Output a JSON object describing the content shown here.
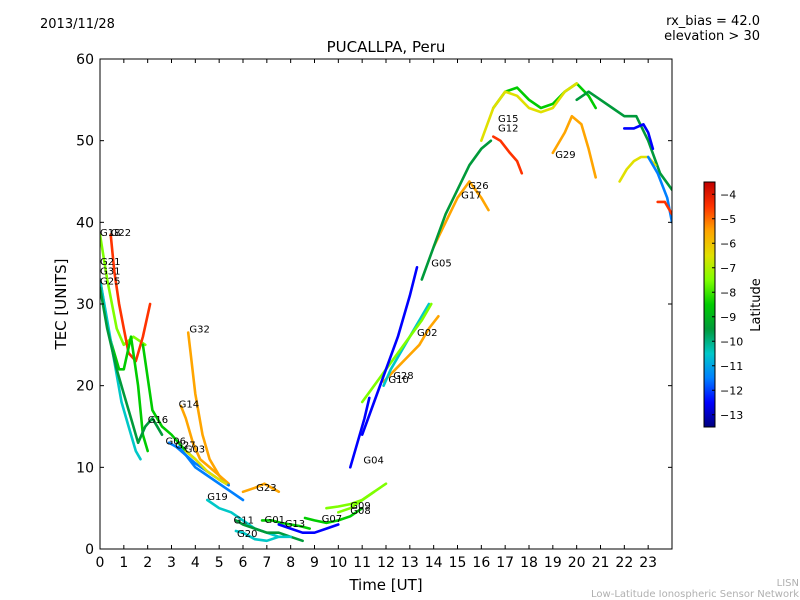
{
  "header": {
    "date": "2013/11/28",
    "rx_bias": "rx_bias = 42.0",
    "elevation": "elevation > 30"
  },
  "footer": {
    "org_short": "LISN",
    "org_full": "Low-Latitude Ionospheric Sensor Network"
  },
  "chart_data": {
    "type": "line",
    "title": "PUCALLPA, Peru",
    "xlabel": "Time [UT]",
    "ylabel": "TEC [UNITS]",
    "xlim": [
      0,
      24
    ],
    "ylim": [
      0,
      60
    ],
    "x_ticks": [
      0,
      1,
      2,
      3,
      4,
      5,
      6,
      7,
      8,
      9,
      10,
      11,
      12,
      13,
      14,
      15,
      16,
      17,
      18,
      19,
      20,
      21,
      22,
      23
    ],
    "y_ticks": [
      0,
      10,
      20,
      30,
      40,
      50,
      60
    ],
    "colorbar": {
      "label": "Latitude",
      "range": [
        -13.5,
        -3.5
      ],
      "ticks": [
        -4,
        -5,
        -6,
        -7,
        -8,
        -9,
        -10,
        -11,
        -12,
        -13
      ],
      "colors": [
        "#00007f",
        "#0000ff",
        "#0080ff",
        "#00c8c8",
        "#009a3a",
        "#00cc00",
        "#7fff00",
        "#e0e000",
        "#ffa500",
        "#ff3300",
        "#c00000"
      ]
    },
    "series": [
      {
        "name": "G18",
        "lat": -7.5,
        "x": [
          0.0,
          0.3,
          0.7,
          1.0,
          1.4,
          1.9
        ],
        "y": [
          38.5,
          33,
          27,
          25,
          26,
          25
        ]
      },
      {
        "name": "G22",
        "lat": -4.6,
        "x": [
          0.45,
          0.6,
          0.8,
          1.0,
          1.2,
          1.5,
          1.8,
          2.1
        ],
        "y": [
          38.5,
          34,
          30,
          27,
          24,
          23,
          26,
          30
        ]
      },
      {
        "name": "G21",
        "lat": -8.5,
        "x": [
          0.0,
          0.4,
          0.8,
          1.0,
          1.3,
          1.6,
          1.8,
          2.0
        ],
        "y": [
          33,
          26,
          22,
          22,
          26,
          20,
          14,
          12
        ]
      },
      {
        "name": "G31",
        "lat": -11.0,
        "x": [
          0.0,
          0.3,
          0.6,
          0.9,
          1.2,
          1.5,
          1.7
        ],
        "y": [
          33,
          28,
          23,
          18,
          15,
          12,
          11
        ]
      },
      {
        "name": "G25",
        "lat": -9.5,
        "x": [
          0.0,
          0.3,
          0.7,
          1.0,
          1.3,
          1.6,
          1.9,
          2.2,
          2.6
        ],
        "y": [
          32,
          27,
          22,
          19,
          16,
          13,
          15,
          16,
          14
        ]
      },
      {
        "name": "G16",
        "lat": -8.2,
        "x": [
          1.8,
          2.2,
          2.6,
          3.0,
          3.3,
          3.6,
          4.0
        ],
        "y": [
          25,
          17,
          15,
          14,
          13,
          12,
          11
        ]
      },
      {
        "name": "G32",
        "lat": -5.8,
        "x": [
          3.7,
          3.8,
          4.0,
          4.3,
          4.6,
          5.0,
          5.3
        ],
        "y": [
          26.5,
          24,
          19,
          14,
          11,
          9,
          8
        ]
      },
      {
        "name": "G14",
        "lat": -5.5,
        "x": [
          3.4,
          3.6,
          3.9,
          4.2,
          4.6,
          5.0,
          5.4
        ],
        "y": [
          17.5,
          16,
          13,
          11,
          10,
          9,
          8
        ]
      },
      {
        "name": "G06",
        "lat": -12.0,
        "x": [
          2.9,
          3.2,
          3.6,
          4.0,
          4.5,
          5.0,
          5.4
        ],
        "y": [
          13,
          12.5,
          11.5,
          10.5,
          9.5,
          8.5,
          7.8
        ]
      },
      {
        "name": "G27",
        "lat": -11.5,
        "x": [
          3.3,
          3.6,
          4.0,
          4.5,
          5.0,
          5.5,
          6.0
        ],
        "y": [
          12.5,
          11.5,
          10,
          9,
          8,
          7,
          6
        ]
      },
      {
        "name": "G03",
        "lat": -7.0,
        "x": [
          3.6,
          4.0,
          4.5,
          5.0,
          5.3
        ],
        "y": [
          12,
          11,
          9.5,
          8.5,
          8
        ]
      },
      {
        "name": "G19",
        "lat": -10.8,
        "x": [
          4.5,
          5.0,
          5.5,
          6.0,
          6.5,
          7.0,
          7.5
        ],
        "y": [
          6,
          5,
          4.5,
          3.5,
          2.5,
          2,
          1.5
        ]
      },
      {
        "name": "G23",
        "lat": -6.0,
        "x": [
          6.0,
          6.5,
          6.9,
          7.2,
          7.5
        ],
        "y": [
          7,
          7.5,
          8,
          7.5,
          7
        ]
      },
      {
        "name": "G11",
        "lat": -9.3,
        "x": [
          5.7,
          6.0,
          6.5,
          7.0,
          7.5,
          8.0,
          8.5
        ],
        "y": [
          3.5,
          3,
          2.5,
          2,
          2,
          1.5,
          1
        ]
      },
      {
        "name": "G20",
        "lat": -10.2,
        "x": [
          5.7,
          6.0,
          6.5,
          7.0,
          7.5,
          8.0
        ],
        "y": [
          2.2,
          2,
          1.2,
          1,
          1.5,
          1.5
        ]
      },
      {
        "name": "G01",
        "lat": -8.8,
        "x": [
          6.8,
          7.2,
          7.6,
          8.0,
          8.4,
          8.8
        ],
        "y": [
          3.5,
          3.5,
          3.2,
          3,
          2.8,
          2.5
        ]
      },
      {
        "name": "G13",
        "lat": -12.5,
        "x": [
          7.5,
          8.0,
          8.5,
          9.0,
          9.5,
          10.0
        ],
        "y": [
          3,
          2.5,
          2,
          2,
          2.5,
          3
        ]
      },
      {
        "name": "G07",
        "lat": -9.0,
        "x": [
          8.6,
          9.0,
          9.5,
          10.0,
          10.5,
          11.0
        ],
        "y": [
          3.8,
          3.5,
          3.2,
          3.5,
          4,
          5
        ]
      },
      {
        "name": "G09",
        "lat": -7.2,
        "x": [
          9.5,
          10.0,
          10.5,
          11.0,
          11.5
        ],
        "y": [
          5,
          5.2,
          5.5,
          6,
          7
        ]
      },
      {
        "name": "G08",
        "lat": -8.0,
        "x": [
          10.0,
          10.5,
          11.0,
          11.5,
          12.0
        ],
        "y": [
          4.5,
          5,
          6,
          7,
          8
        ]
      },
      {
        "name": "G04",
        "lat": -13.0,
        "x": [
          10.5,
          10.8,
          11.1,
          11.3
        ],
        "y": [
          10,
          13,
          16,
          18.5
        ]
      },
      {
        "name": "G28",
        "lat": -5.2,
        "x": [
          11.9,
          12.4,
          12.9,
          13.4,
          13.8,
          14.2
        ],
        "y": [
          20.5,
          22,
          23.5,
          25,
          27,
          28.5
        ]
      },
      {
        "name": "G10",
        "lat": -10.5,
        "x": [
          11.9,
          12.2,
          12.6,
          13.0,
          13.4,
          13.8
        ],
        "y": [
          20,
          22,
          24,
          26,
          28,
          30
        ]
      },
      {
        "name": "G02",
        "lat": -7.8,
        "x": [
          11.0,
          11.5,
          12.0,
          12.5,
          13.0,
          13.5,
          13.9
        ],
        "y": [
          18,
          20,
          22,
          24,
          26,
          28,
          30
        ]
      },
      {
        "name": "G05",
        "lat": -12.8,
        "x": [
          11.0,
          11.5,
          12.0,
          12.5,
          13.0,
          13.3
        ],
        "y": [
          14,
          18,
          22,
          26,
          31,
          34.5
        ]
      },
      {
        "name": "G17",
        "lat": -5.3,
        "x": [
          14.0,
          14.5,
          15.0,
          15.5,
          16.0,
          16.3
        ],
        "y": [
          37,
          40,
          43,
          45,
          43,
          41.5
        ]
      },
      {
        "name": "G26",
        "lat": -10.0,
        "x": [
          13.5,
          14.0,
          14.5,
          15.0,
          15.5,
          16.0,
          16.4
        ],
        "y": [
          33,
          37,
          41,
          44,
          47,
          49,
          50
        ]
      },
      {
        "name": "G15",
        "lat": -8.5,
        "x": [
          16.5,
          17.0,
          17.5,
          18.0,
          18.5,
          19.0,
          19.5,
          20.0,
          20.5,
          20.8
        ],
        "y": [
          54,
          56,
          56.5,
          55,
          54,
          54.5,
          56,
          57,
          55.5,
          54
        ]
      },
      {
        "name": "G12",
        "lat": -5.0,
        "x": [
          16.5,
          16.8,
          17.2,
          17.5,
          17.7
        ],
        "y": [
          50.5,
          50,
          48.5,
          47.5,
          46
        ]
      },
      {
        "name": "G29",
        "lat": -5.4,
        "x": [
          19.0,
          19.5,
          19.8,
          20.2,
          20.5,
          20.8
        ],
        "y": [
          48.5,
          51,
          53,
          52,
          49,
          45.5
        ]
      },
      {
        "name": "",
        "lat": -7.0,
        "x": [
          16.0,
          16.5,
          17.0,
          17.5,
          18.0,
          18.5,
          19.0,
          19.5,
          20.0
        ],
        "y": [
          50,
          54,
          56,
          55.5,
          54,
          53.5,
          54,
          56,
          57
        ]
      },
      {
        "name": "",
        "lat": -9.8,
        "x": [
          20.0,
          20.5,
          21.0,
          21.5,
          22.0,
          22.5,
          23.0,
          23.5,
          24.0
        ],
        "y": [
          55,
          56,
          55,
          54,
          53,
          53,
          50,
          46,
          44
        ]
      },
      {
        "name": "",
        "lat": -6.8,
        "x": [
          21.8,
          22.1,
          22.4,
          22.7,
          23.0,
          23.3
        ],
        "y": [
          45,
          46.5,
          47.5,
          48,
          48,
          47
        ]
      },
      {
        "name": "",
        "lat": -12.6,
        "x": [
          22.0,
          22.4,
          22.8,
          23.0,
          23.2
        ],
        "y": [
          51.5,
          51.5,
          52,
          51,
          49
        ]
      },
      {
        "name": "",
        "lat": -11.3,
        "x": [
          23.0,
          23.4,
          23.8,
          24.0
        ],
        "y": [
          48,
          46,
          43,
          40
        ]
      },
      {
        "name": "",
        "lat": -4.6,
        "x": [
          23.4,
          23.7,
          24.0
        ],
        "y": [
          42.5,
          42.5,
          41
        ]
      }
    ],
    "labels": [
      {
        "text": "G18",
        "x": 0.0,
        "y": 38.3
      },
      {
        "text": "G22",
        "x": 0.45,
        "y": 38.3
      },
      {
        "text": "G21",
        "x": 0.0,
        "y": 34.8
      },
      {
        "text": "G31",
        "x": 0.0,
        "y": 33.6
      },
      {
        "text": "G25",
        "x": 0.0,
        "y": 32.4
      },
      {
        "text": "G32",
        "x": 3.75,
        "y": 26.5
      },
      {
        "text": "G14",
        "x": 3.3,
        "y": 17.3
      },
      {
        "text": "G16",
        "x": 2.0,
        "y": 15.4
      },
      {
        "text": "G06",
        "x": 2.75,
        "y": 12.8
      },
      {
        "text": "G27",
        "x": 3.15,
        "y": 12.3
      },
      {
        "text": "G03",
        "x": 3.55,
        "y": 11.8
      },
      {
        "text": "G19",
        "x": 4.5,
        "y": 6.0
      },
      {
        "text": "G23",
        "x": 6.55,
        "y": 7.1
      },
      {
        "text": "G11",
        "x": 5.6,
        "y": 3.1
      },
      {
        "text": "G01",
        "x": 6.9,
        "y": 3.2
      },
      {
        "text": "G13",
        "x": 7.75,
        "y": 2.7
      },
      {
        "text": "G20",
        "x": 5.75,
        "y": 1.5
      },
      {
        "text": "G07",
        "x": 9.3,
        "y": 3.3
      },
      {
        "text": "G09",
        "x": 10.5,
        "y": 4.9
      },
      {
        "text": "G08",
        "x": 10.5,
        "y": 4.3
      },
      {
        "text": "G04",
        "x": 11.05,
        "y": 10.5
      },
      {
        "text": "G28",
        "x": 12.3,
        "y": 20.8
      },
      {
        "text": "G10",
        "x": 12.1,
        "y": 20.3
      },
      {
        "text": "G02",
        "x": 13.3,
        "y": 26.1
      },
      {
        "text": "G05",
        "x": 13.9,
        "y": 34.6
      },
      {
        "text": "G26",
        "x": 15.45,
        "y": 44.1
      },
      {
        "text": "G17",
        "x": 15.15,
        "y": 42.9
      },
      {
        "text": "G15",
        "x": 16.7,
        "y": 52.3
      },
      {
        "text": "G12",
        "x": 16.7,
        "y": 51.1
      },
      {
        "text": "G29",
        "x": 19.1,
        "y": 47.9
      }
    ]
  }
}
